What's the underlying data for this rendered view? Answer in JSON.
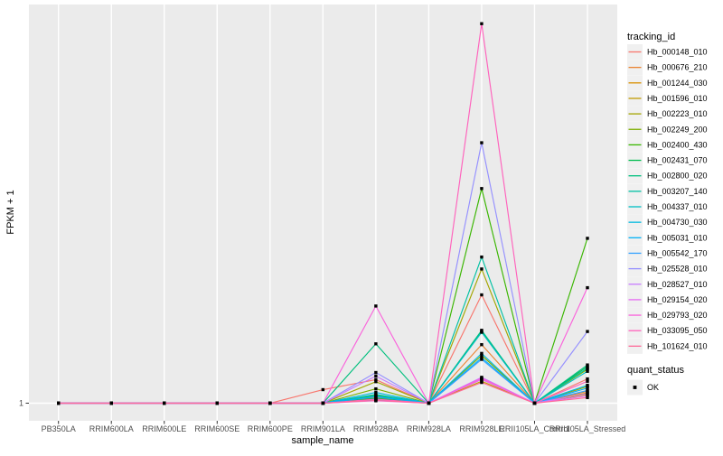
{
  "figure": {
    "background": "#ffffff",
    "panel_background": "#ebebeb",
    "gridline_color": "#ffffff",
    "axis_text_color": "#4d4d4d",
    "legend_key_background": "#f0f0f0",
    "point_color": "#000000"
  },
  "chart_data": {
    "type": "line",
    "title": "",
    "xlabel": "sample_name",
    "ylabel": "FPKM + 1",
    "y_tick_labels": [
      "1"
    ],
    "y_axis_note": "only labeled tick is 1 at the baseline; series values below are relative peak heights (0 = baseline value 1, 1 = top of panel)",
    "legend_title": "tracking_id",
    "legend_position": "right",
    "grid": "vertical gridlines per category + baseline gridline",
    "categories": [
      "PB350LA",
      "RRIM600LA",
      "RRIM600LE",
      "RRIM600SE",
      "RRIM600PE",
      "RRIM901LA",
      "RRIM928BA",
      "RRIM928LA",
      "RRIM928LE",
      "RRII105LA_Control",
      "RRII105LA_Stressed"
    ],
    "series": [
      {
        "name": "Hb_000148_010",
        "color": "#F8766D",
        "values": [
          0,
          0,
          0,
          0,
          0,
          0.034,
          0.059,
          0,
          0.272,
          0,
          0.061
        ]
      },
      {
        "name": "Hb_000676_210",
        "color": "#EA8331",
        "values": [
          0,
          0,
          0,
          0,
          0,
          0,
          0.014,
          0,
          0.147,
          0,
          0.03
        ]
      },
      {
        "name": "Hb_001244_030",
        "color": "#D89000",
        "values": [
          0,
          0,
          0,
          0,
          0,
          0,
          0.01,
          0,
          0.06,
          0,
          0.026
        ]
      },
      {
        "name": "Hb_001596_010",
        "color": "#C09B00",
        "values": [
          0,
          0,
          0,
          0,
          0,
          0,
          0.008,
          0,
          0.055,
          0,
          0.022
        ]
      },
      {
        "name": "Hb_002223_010",
        "color": "#A3A500",
        "values": [
          0,
          0,
          0,
          0,
          0,
          0,
          0.054,
          0,
          0.337,
          0,
          0.042
        ]
      },
      {
        "name": "Hb_002249_200",
        "color": "#7CAE00",
        "values": [
          0,
          0,
          0,
          0,
          0,
          0,
          0.036,
          0,
          0.12,
          0,
          0.085
        ]
      },
      {
        "name": "Hb_002400_430",
        "color": "#39B600",
        "values": [
          0,
          0,
          0,
          0,
          0,
          0,
          0.02,
          0,
          0.539,
          0,
          0.414
        ]
      },
      {
        "name": "Hb_002431_070",
        "color": "#00BB4E",
        "values": [
          0,
          0,
          0,
          0,
          0,
          0,
          0.012,
          0,
          0.18,
          0,
          0.092
        ]
      },
      {
        "name": "Hb_002800_020",
        "color": "#00BF7D",
        "values": [
          0,
          0,
          0,
          0,
          0,
          0,
          0.149,
          0,
          0.183,
          0,
          0.096
        ]
      },
      {
        "name": "Hb_003207_140",
        "color": "#00C1A3",
        "values": [
          0,
          0,
          0,
          0,
          0,
          0,
          0.022,
          0,
          0.367,
          0,
          0.088
        ]
      },
      {
        "name": "Hb_004337_010",
        "color": "#00BFC4",
        "values": [
          0,
          0,
          0,
          0,
          0,
          0,
          0.018,
          0,
          0.178,
          0,
          0.08
        ]
      },
      {
        "name": "Hb_004730_030",
        "color": "#00BAE0",
        "values": [
          0,
          0,
          0,
          0,
          0,
          0,
          0.027,
          0,
          0.125,
          0,
          0.045
        ]
      },
      {
        "name": "Hb_005031_010",
        "color": "#00B0F6",
        "values": [
          0,
          0,
          0,
          0,
          0,
          0,
          0.016,
          0,
          0.114,
          0,
          0.038
        ]
      },
      {
        "name": "Hb_005542_170",
        "color": "#35A2FF",
        "values": [
          0,
          0,
          0,
          0,
          0,
          0,
          0.009,
          0,
          0.11,
          0,
          0.032
        ]
      },
      {
        "name": "Hb_025528_010",
        "color": "#9590FF",
        "values": [
          0,
          0,
          0,
          0,
          0,
          0,
          0.077,
          0,
          0.654,
          0,
          0.18
        ]
      },
      {
        "name": "Hb_028527_010",
        "color": "#C77CFF",
        "values": [
          0,
          0,
          0,
          0,
          0,
          0,
          0.068,
          0,
          0.065,
          0,
          0.024
        ]
      },
      {
        "name": "Hb_029154_020",
        "color": "#E76BF3",
        "values": [
          0,
          0,
          0,
          0,
          0,
          0,
          0.006,
          0,
          0.06,
          0,
          0.018
        ]
      },
      {
        "name": "Hb_029793_020",
        "color": "#FA62DB",
        "values": [
          0,
          0,
          0,
          0,
          0,
          0,
          0.244,
          0,
          0.063,
          0,
          0.29
        ]
      },
      {
        "name": "Hb_033095_050",
        "color": "#FF62BC",
        "values": [
          0,
          0,
          0,
          0,
          0,
          0,
          0.01,
          0,
          0.953,
          0,
          0.055
        ]
      },
      {
        "name": "Hb_101624_010",
        "color": "#FF6A98",
        "values": [
          0,
          0,
          0,
          0,
          0,
          0,
          0.007,
          0,
          0.052,
          0,
          0.014
        ]
      }
    ],
    "legend2_title": "quant_status",
    "legend2_items": [
      {
        "label": "OK"
      }
    ]
  }
}
